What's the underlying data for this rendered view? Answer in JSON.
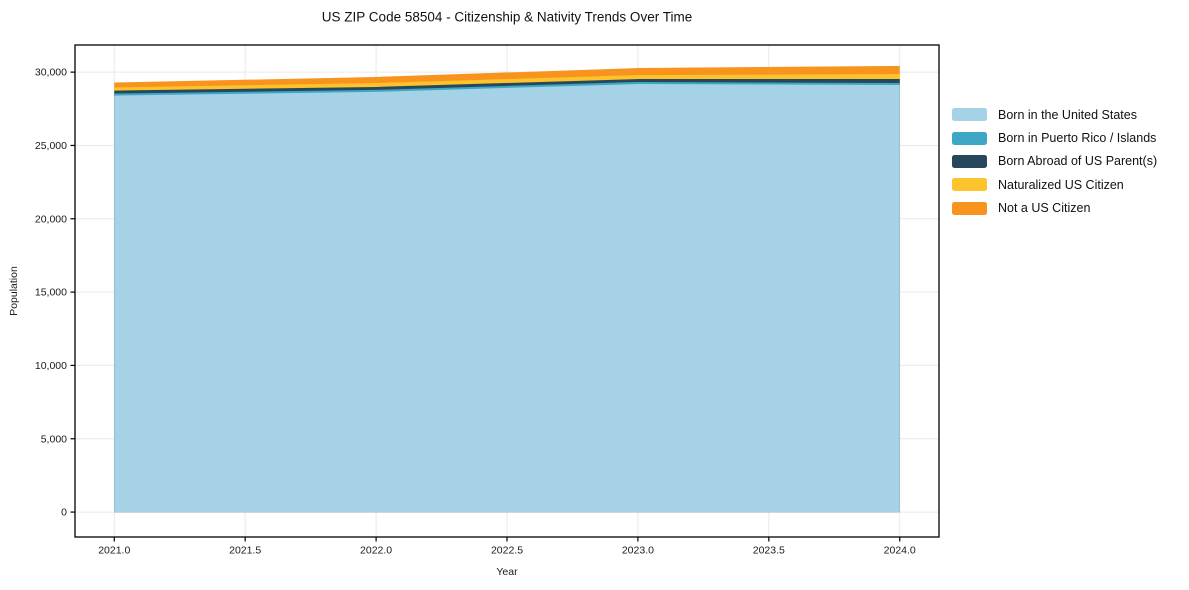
{
  "chart_data": {
    "type": "area",
    "stacked": true,
    "title": "US ZIP Code 58504 - Citizenship & Nativity Trends Over Time",
    "xlabel": "Year",
    "ylabel": "Population",
    "x": [
      2021,
      2022,
      2023,
      2024
    ],
    "series": [
      {
        "name": "Born in the United States",
        "color": "#a6d2e7",
        "values": [
          28400,
          28650,
          29190,
          29120
        ]
      },
      {
        "name": "Born in Puerto Rico / Islands",
        "color": "#3fa7c6",
        "values": [
          140,
          140,
          140,
          140
        ]
      },
      {
        "name": "Born Abroad of US Parent(s)",
        "color": "#27485c",
        "values": [
          200,
          200,
          200,
          270
        ]
      },
      {
        "name": "Naturalized US Citizen",
        "color": "#fcc32d",
        "values": [
          210,
          270,
          270,
          340
        ]
      },
      {
        "name": "Not a US Citizen",
        "color": "#f8941d",
        "values": [
          340,
          410,
          480,
          550
        ]
      }
    ],
    "totals": [
      29290,
      29670,
      30280,
      30420
    ],
    "xticks": {
      "values": [
        2021.0,
        2021.5,
        2022.0,
        2022.5,
        2023.0,
        2023.5,
        2024.0
      ],
      "labels": [
        "2021.0",
        "2021.5",
        "2022.0",
        "2022.5",
        "2023.0",
        "2023.5",
        "2024.0"
      ]
    },
    "yticks": {
      "values": [
        0,
        5000,
        10000,
        15000,
        20000,
        25000,
        30000
      ],
      "labels": [
        "0",
        "5,000",
        "10,000",
        "15,000",
        "20,000",
        "25,000",
        "30,000"
      ]
    },
    "xlim": [
      2020.85,
      2024.15
    ],
    "ylim": [
      -1700,
      31850
    ],
    "grid": true,
    "legend_position": "right-outside"
  },
  "colors": {
    "background": "#ffffff",
    "grid": "#e9e9e9",
    "spine": "#000000",
    "tick_text": "#1a1a1a"
  }
}
